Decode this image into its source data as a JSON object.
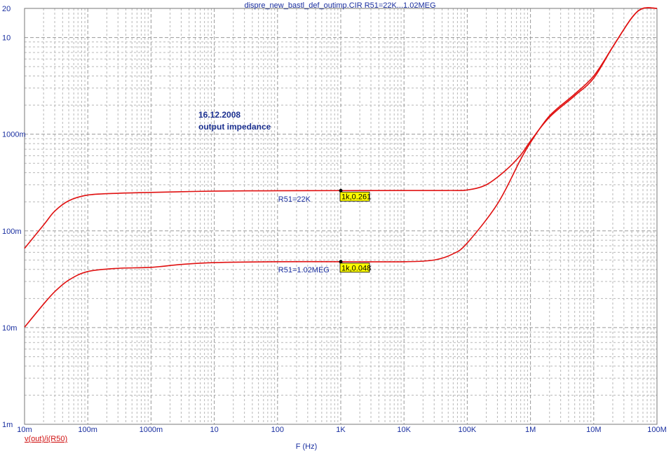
{
  "chart_data": {
    "type": "line",
    "title": "dispre_new_bastl_def_outimp.CIR R51=22K...1.02MEG",
    "xlabel": "F (Hz)",
    "ylabel": "v(out)/i(R50)",
    "x_scale": "log",
    "y_scale": "log",
    "xlim": [
      0.01,
      100000000
    ],
    "ylim": [
      0.001,
      20
    ],
    "x_ticks": [
      {
        "value": 0.01,
        "label": "10m"
      },
      {
        "value": 0.1,
        "label": "100m"
      },
      {
        "value": 1,
        "label": "1000m"
      },
      {
        "value": 10,
        "label": "10"
      },
      {
        "value": 100,
        "label": "100"
      },
      {
        "value": 1000,
        "label": "1K"
      },
      {
        "value": 10000,
        "label": "10K"
      },
      {
        "value": 100000,
        "label": "100K"
      },
      {
        "value": 1000000,
        "label": "1M"
      },
      {
        "value": 10000000,
        "label": "10M"
      },
      {
        "value": 100000000,
        "label": "100M"
      }
    ],
    "y_ticks": [
      {
        "value": 20,
        "label": "20"
      },
      {
        "value": 10,
        "label": "10"
      },
      {
        "value": 1,
        "label": "1000m"
      },
      {
        "value": 0.1,
        "label": "100m"
      },
      {
        "value": 0.01,
        "label": "10m"
      },
      {
        "value": 0.001,
        "label": "1m"
      }
    ],
    "grid": true,
    "series": [
      {
        "name": "R51=22K",
        "color": "#e01010",
        "x": [
          0.01,
          0.02,
          0.03,
          0.05,
          0.1,
          0.3,
          1,
          10,
          100,
          1000,
          10000,
          50000,
          100000,
          200000,
          400000,
          700000,
          1000000,
          2000000,
          5000000,
          10000000,
          20000000,
          40000000,
          60000000,
          100000000
        ],
        "y": [
          0.066,
          0.115,
          0.16,
          0.205,
          0.235,
          0.245,
          0.25,
          0.258,
          0.26,
          0.261,
          0.262,
          0.262,
          0.265,
          0.3,
          0.42,
          0.61,
          0.85,
          1.5,
          2.5,
          3.8,
          8.0,
          16.0,
          20,
          20
        ]
      },
      {
        "name": "R51=1.02MEG",
        "color": "#e01010",
        "x": [
          0.01,
          0.02,
          0.03,
          0.05,
          0.1,
          0.3,
          1,
          3,
          10,
          100,
          1000,
          10000,
          30000,
          60000,
          100000,
          300000,
          700000,
          1000000,
          2000000,
          5000000,
          10000000,
          20000000,
          40000000,
          60000000,
          100000000
        ],
        "y": [
          0.0101,
          0.0175,
          0.0235,
          0.031,
          0.038,
          0.041,
          0.042,
          0.045,
          0.047,
          0.048,
          0.048,
          0.048,
          0.05,
          0.058,
          0.075,
          0.19,
          0.55,
          0.82,
          1.55,
          2.6,
          4.0,
          8.0,
          16.0,
          20,
          20
        ]
      }
    ],
    "curve_labels": [
      {
        "text": "R51=22K",
        "x": 100,
        "y": 0.245
      },
      {
        "text": "R51=1.02MEG",
        "x": 100,
        "y": 0.0455
      }
    ],
    "markers": [
      {
        "x": 1000,
        "y": 0.261,
        "label": "1k,0.261"
      },
      {
        "x": 1000,
        "y": 0.048,
        "label": "1k,0.048"
      }
    ],
    "annotation_lines": [
      "16.12.2008",
      "output impedance"
    ]
  }
}
